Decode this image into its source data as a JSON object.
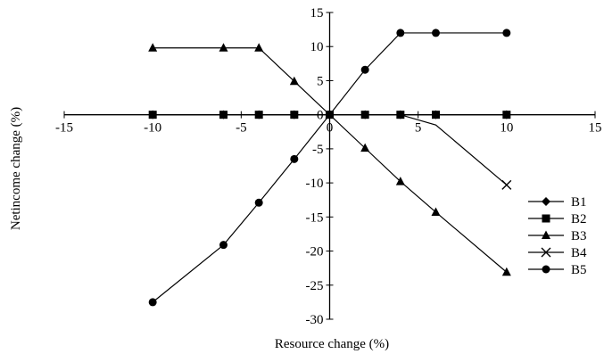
{
  "chart_data": {
    "type": "line",
    "title": "",
    "xlabel": "Resource change (%)",
    "ylabel": "Netincome change (%)",
    "xlim": [
      -15,
      15
    ],
    "ylim": [
      -30,
      15
    ],
    "xticks": [
      -15,
      -10,
      -5,
      0,
      5,
      10,
      15
    ],
    "yticks": [
      15,
      10,
      5,
      0,
      -5,
      -10,
      -15,
      -20,
      -25,
      -30
    ],
    "grid": false,
    "legend_position": "right",
    "series": [
      {
        "name": "B1",
        "marker": "diamond",
        "x": [
          -10,
          -6,
          -4,
          -2,
          0,
          2,
          4,
          6,
          10
        ],
        "y": [
          0,
          0,
          0,
          0,
          0,
          0,
          0,
          0,
          0
        ]
      },
      {
        "name": "B2",
        "marker": "square",
        "x": [
          -10,
          -6,
          -4,
          -2,
          0,
          2,
          4,
          6,
          10
        ],
        "y": [
          0,
          0,
          0,
          0,
          0,
          0,
          0,
          0,
          0
        ]
      },
      {
        "name": "B3",
        "marker": "triangle",
        "x": [
          -10,
          -6,
          -4,
          -2,
          0,
          2,
          4,
          6,
          10
        ],
        "y": [
          9.8,
          9.8,
          9.8,
          4.9,
          0,
          -4.9,
          -9.8,
          -14.3,
          -23.1
        ]
      },
      {
        "name": "B4",
        "marker": "x",
        "x": [
          -10,
          -6,
          -4,
          -2,
          0,
          2,
          4,
          6,
          10
        ],
        "y": [
          0,
          0,
          0,
          0,
          0,
          0,
          0,
          -1.5,
          -10.3
        ]
      },
      {
        "name": "B5",
        "marker": "circle",
        "x": [
          -10,
          -6,
          -4,
          -2,
          0,
          2,
          4,
          6,
          10
        ],
        "y": [
          -27.5,
          -19.1,
          -12.9,
          -6.5,
          0,
          6.6,
          12,
          12,
          12
        ]
      }
    ]
  }
}
